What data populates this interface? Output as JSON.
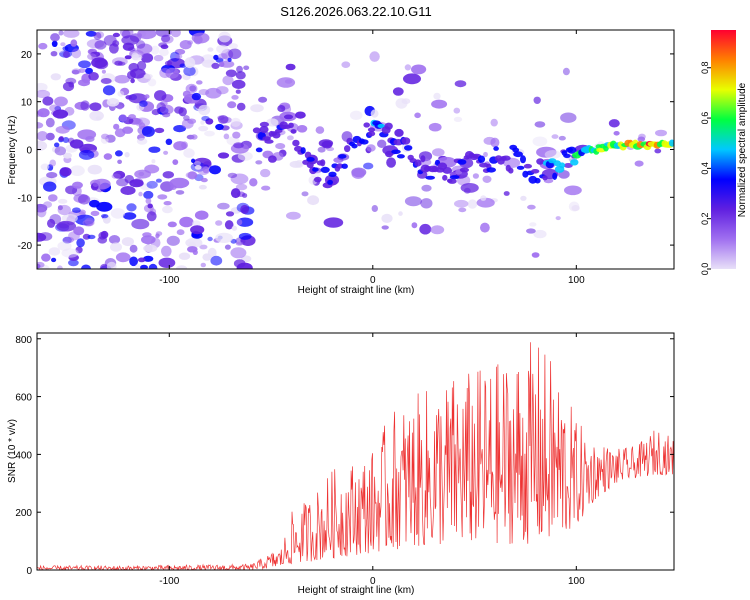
{
  "title": "S126.2026.063.22.10.G11",
  "chart_data": [
    {
      "type": "heatmap",
      "title": "S126.2026.063.22.10.G11",
      "xlabel": "Height of straight line (km)",
      "ylabel": "Frequency (Hz)",
      "xlim": [
        -165,
        148
      ],
      "ylim": [
        -25,
        25
      ],
      "xticks": [
        -100,
        0,
        100
      ],
      "xtick_labels": [
        "-100",
        "0",
        "100"
      ],
      "yticks": [
        -20,
        -10,
        0,
        10,
        20
      ],
      "ytick_labels": [
        "-20",
        "-10",
        "0",
        "10",
        "20"
      ],
      "colorbar": {
        "label": "Normalized spectral amplitude",
        "range": [
          0,
          0.95
        ],
        "ticks": [
          0,
          0.2,
          0.4,
          0.6,
          0.8
        ],
        "tick_labels": [
          "0.0",
          "0.2",
          "0.4",
          "0.6",
          "0.8"
        ],
        "colors": [
          "#e8e0f8",
          "#a070f0",
          "#6020e0",
          "#0000ff",
          "#00c8ff",
          "#00ff40",
          "#e8ff00",
          "#ff8000",
          "#ff0030"
        ]
      },
      "ridge": {
        "x": [
          -57,
          -45,
          -38,
          -30,
          -20,
          -10,
          0,
          10,
          20,
          30,
          40,
          50,
          60,
          70,
          80,
          90,
          100,
          110,
          120,
          130,
          140,
          148
        ],
        "freq": [
          2,
          6,
          3,
          -3,
          -6,
          1,
          4,
          2,
          -2,
          -4,
          -5,
          -3,
          -2,
          -2,
          -5,
          -3,
          -1,
          0,
          1,
          1,
          1,
          1
        ],
        "amplitude": [
          0.3,
          0.35,
          0.3,
          0.3,
          0.35,
          0.4,
          0.45,
          0.4,
          0.35,
          0.35,
          0.3,
          0.3,
          0.35,
          0.4,
          0.4,
          0.45,
          0.55,
          0.65,
          0.8,
          0.9,
          0.9,
          0.85
        ]
      }
    },
    {
      "type": "line",
      "xlabel": "Height of straight line (km)",
      "ylabel": "SNR (10 * v/v)",
      "xlim": [
        -165,
        148
      ],
      "ylim": [
        0,
        820
      ],
      "xticks": [
        -100,
        0,
        100
      ],
      "xtick_labels": [
        "-100",
        "0",
        "100"
      ],
      "yticks": [
        0,
        200,
        400,
        600,
        800
      ],
      "ytick_labels": [
        "0",
        "200",
        "400",
        "600",
        "800"
      ],
      "series": [
        {
          "name": "SNR",
          "color": "#ee3333",
          "envelope_x": [
            -165,
            -120,
            -60,
            -45,
            -40,
            -30,
            -20,
            -10,
            0,
            10,
            20,
            30,
            40,
            50,
            60,
            70,
            80,
            90,
            100,
            110,
            120,
            130,
            140,
            148
          ],
          "envelope_low": [
            0,
            0,
            0,
            10,
            20,
            30,
            40,
            50,
            60,
            70,
            80,
            80,
            90,
            90,
            90,
            90,
            90,
            100,
            150,
            250,
            300,
            320,
            330,
            330
          ],
          "envelope_high": [
            15,
            15,
            20,
            80,
            200,
            260,
            350,
            380,
            420,
            560,
            600,
            650,
            680,
            700,
            720,
            760,
            800,
            720,
            520,
            450,
            420,
            430,
            500,
            450
          ]
        }
      ]
    }
  ]
}
